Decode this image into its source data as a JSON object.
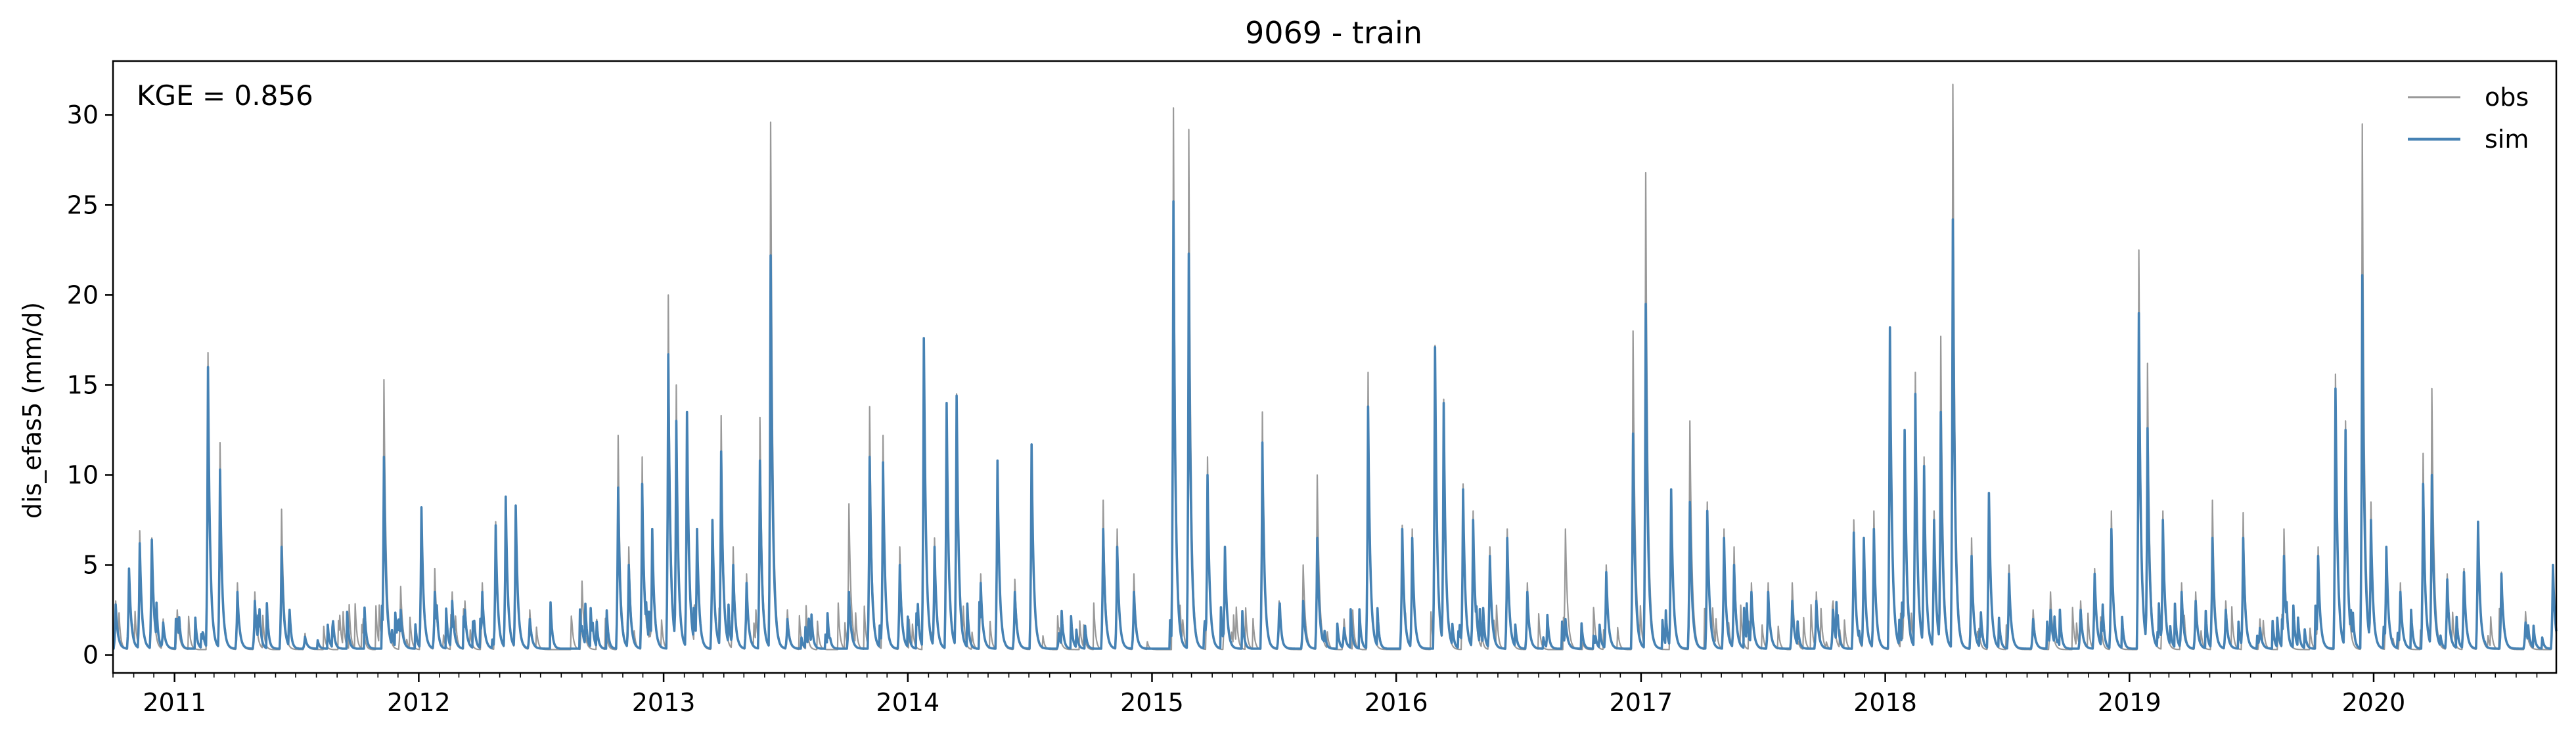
{
  "chart_data": {
    "type": "line",
    "title": "9069 - train",
    "xlabel": "",
    "ylabel": "dis_efas5 (mm/d)",
    "annotation": "KGE = 0.856",
    "x_range": [
      "2010-10-01",
      "2020-09-30"
    ],
    "ylim": [
      -1.0,
      33.0
    ],
    "y_ticks": [
      0,
      5,
      10,
      15,
      20,
      25,
      30
    ],
    "x_ticks": [
      {
        "date": "2011-01-01",
        "label": "2011"
      },
      {
        "date": "2012-01-01",
        "label": "2012"
      },
      {
        "date": "2013-01-01",
        "label": "2013"
      },
      {
        "date": "2014-01-01",
        "label": "2014"
      },
      {
        "date": "2015-01-01",
        "label": "2015"
      },
      {
        "date": "2016-01-01",
        "label": "2016"
      },
      {
        "date": "2017-01-01",
        "label": "2017"
      },
      {
        "date": "2018-01-01",
        "label": "2018"
      },
      {
        "date": "2019-01-01",
        "label": "2019"
      },
      {
        "date": "2020-01-01",
        "label": "2020"
      }
    ],
    "grid": false,
    "legend": {
      "position": "top-right"
    },
    "series": [
      {
        "name": "obs",
        "color": "#999999",
        "baseline": 0.3,
        "peaks": [
          [
            "2010-10-05",
            3.0
          ],
          [
            "2010-10-25",
            4.8
          ],
          [
            "2010-11-10",
            6.9
          ],
          [
            "2010-11-28",
            6.5
          ],
          [
            "2010-12-15",
            2.0
          ],
          [
            "2011-01-05",
            2.5
          ],
          [
            "2011-02-20",
            16.8
          ],
          [
            "2011-03-10",
            11.8
          ],
          [
            "2011-04-05",
            4.0
          ],
          [
            "2011-05-01",
            3.5
          ],
          [
            "2011-06-10",
            8.1
          ],
          [
            "2011-07-15",
            1.2
          ],
          [
            "2011-11-10",
            15.3
          ],
          [
            "2011-12-05",
            3.8
          ],
          [
            "2012-01-05",
            8.2
          ],
          [
            "2012-01-25",
            4.8
          ],
          [
            "2012-02-20",
            3.5
          ],
          [
            "2012-03-10",
            3.0
          ],
          [
            "2012-04-05",
            4.0
          ],
          [
            "2012-04-25",
            7.4
          ],
          [
            "2012-05-10",
            8.8
          ],
          [
            "2012-05-25",
            8.3
          ],
          [
            "2012-06-15",
            2.5
          ],
          [
            "2012-09-01",
            4.1
          ],
          [
            "2012-10-25",
            12.2
          ],
          [
            "2012-11-10",
            6.0
          ],
          [
            "2012-11-30",
            11.0
          ],
          [
            "2012-12-15",
            7.0
          ],
          [
            "2013-01-08",
            20.0
          ],
          [
            "2013-01-20",
            15.0
          ],
          [
            "2013-02-05",
            13.2
          ],
          [
            "2013-02-20",
            7.0
          ],
          [
            "2013-03-15",
            7.5
          ],
          [
            "2013-03-28",
            13.3
          ],
          [
            "2013-04-15",
            6.0
          ],
          [
            "2013-05-05",
            4.5
          ],
          [
            "2013-05-25",
            13.2
          ],
          [
            "2013-06-10",
            29.6
          ],
          [
            "2013-07-05",
            2.5
          ],
          [
            "2013-10-05",
            8.4
          ],
          [
            "2013-11-05",
            13.8
          ],
          [
            "2013-11-25",
            12.2
          ],
          [
            "2013-12-20",
            6.0
          ],
          [
            "2014-01-25",
            17.5
          ],
          [
            "2014-02-10",
            6.5
          ],
          [
            "2014-02-28",
            14.0
          ],
          [
            "2014-03-15",
            14.5
          ],
          [
            "2014-04-20",
            4.5
          ],
          [
            "2014-05-15",
            10.5
          ],
          [
            "2014-06-10",
            4.2
          ],
          [
            "2014-07-05",
            11.7
          ],
          [
            "2014-08-15",
            1.5
          ],
          [
            "2014-10-20",
            8.6
          ],
          [
            "2014-11-10",
            7.0
          ],
          [
            "2014-12-05",
            4.5
          ],
          [
            "2015-02-02",
            30.4
          ],
          [
            "2015-02-25",
            29.2
          ],
          [
            "2015-03-25",
            11.0
          ],
          [
            "2015-04-20",
            6.0
          ],
          [
            "2015-06-15",
            13.5
          ],
          [
            "2015-07-10",
            3.0
          ],
          [
            "2015-08-15",
            5.0
          ],
          [
            "2015-09-05",
            10.0
          ],
          [
            "2015-10-15",
            2.0
          ],
          [
            "2015-11-20",
            15.7
          ],
          [
            "2016-01-10",
            7.2
          ],
          [
            "2016-01-25",
            7.0
          ],
          [
            "2016-02-28",
            17.2
          ],
          [
            "2016-03-12",
            14.2
          ],
          [
            "2016-04-10",
            9.5
          ],
          [
            "2016-04-25",
            8.0
          ],
          [
            "2016-05-20",
            6.0
          ],
          [
            "2016-06-15",
            7.0
          ],
          [
            "2016-07-15",
            4.0
          ],
          [
            "2016-09-10",
            7.0
          ],
          [
            "2016-11-10",
            5.0
          ],
          [
            "2016-12-20",
            18.0
          ],
          [
            "2017-01-08",
            26.8
          ],
          [
            "2017-02-15",
            9.2
          ],
          [
            "2017-03-15",
            13.0
          ],
          [
            "2017-04-10",
            8.5
          ],
          [
            "2017-05-05",
            7.0
          ],
          [
            "2017-05-20",
            6.0
          ],
          [
            "2017-06-15",
            4.0
          ],
          [
            "2017-07-10",
            4.0
          ],
          [
            "2017-08-15",
            4.0
          ],
          [
            "2017-09-20",
            3.5
          ],
          [
            "2017-10-15",
            3.0
          ],
          [
            "2017-11-15",
            7.5
          ],
          [
            "2017-11-30",
            6.5
          ],
          [
            "2017-12-15",
            8.0
          ],
          [
            "2018-01-08",
            18.0
          ],
          [
            "2018-01-30",
            10.0
          ],
          [
            "2018-02-15",
            15.7
          ],
          [
            "2018-02-28",
            11.0
          ],
          [
            "2018-03-15",
            8.0
          ],
          [
            "2018-03-25",
            17.7
          ],
          [
            "2018-04-12",
            31.7
          ],
          [
            "2018-05-10",
            6.5
          ],
          [
            "2018-06-05",
            9.0
          ],
          [
            "2018-07-05",
            5.0
          ],
          [
            "2018-08-10",
            2.5
          ],
          [
            "2018-09-05",
            3.5
          ],
          [
            "2018-10-20",
            3.0
          ],
          [
            "2018-11-10",
            4.8
          ],
          [
            "2018-12-05",
            8.0
          ],
          [
            "2019-01-15",
            22.5
          ],
          [
            "2019-01-28",
            16.2
          ],
          [
            "2019-02-20",
            8.0
          ],
          [
            "2019-03-20",
            4.0
          ],
          [
            "2019-04-10",
            3.5
          ],
          [
            "2019-05-05",
            8.6
          ],
          [
            "2019-05-25",
            3.0
          ],
          [
            "2019-06-20",
            7.9
          ],
          [
            "2019-07-15",
            2.0
          ],
          [
            "2019-08-20",
            7.0
          ],
          [
            "2019-10-10",
            6.0
          ],
          [
            "2019-11-05",
            15.6
          ],
          [
            "2019-11-20",
            13.0
          ],
          [
            "2019-12-15",
            29.5
          ],
          [
            "2019-12-28",
            8.5
          ],
          [
            "2020-01-20",
            6.0
          ],
          [
            "2020-02-10",
            4.0
          ],
          [
            "2020-03-15",
            11.2
          ],
          [
            "2020-03-28",
            14.8
          ],
          [
            "2020-04-20",
            4.5
          ],
          [
            "2020-05-15",
            4.8
          ],
          [
            "2020-06-05",
            7.2
          ],
          [
            "2020-07-10",
            4.6
          ],
          [
            "2020-08-15",
            2.4
          ],
          [
            "2020-09-25",
            4.5
          ]
        ]
      },
      {
        "name": "sim",
        "color": "#4682b4",
        "baseline": 0.35,
        "peaks": [
          [
            "2010-10-05",
            2.8
          ],
          [
            "2010-10-25",
            4.8
          ],
          [
            "2010-11-10",
            6.2
          ],
          [
            "2010-11-28",
            6.4
          ],
          [
            "2010-12-15",
            1.8
          ],
          [
            "2011-01-05",
            2.0
          ],
          [
            "2011-02-20",
            16.0
          ],
          [
            "2011-03-10",
            10.3
          ],
          [
            "2011-04-05",
            3.5
          ],
          [
            "2011-05-01",
            3.0
          ],
          [
            "2011-06-10",
            6.0
          ],
          [
            "2011-07-15",
            1.0
          ],
          [
            "2011-11-10",
            11.0
          ],
          [
            "2011-12-05",
            2.5
          ],
          [
            "2012-01-05",
            8.2
          ],
          [
            "2012-01-25",
            3.5
          ],
          [
            "2012-02-20",
            3.0
          ],
          [
            "2012-03-10",
            2.5
          ],
          [
            "2012-04-05",
            3.5
          ],
          [
            "2012-04-25",
            7.2
          ],
          [
            "2012-05-10",
            8.8
          ],
          [
            "2012-05-25",
            8.3
          ],
          [
            "2012-06-15",
            2.0
          ],
          [
            "2012-09-01",
            1.6
          ],
          [
            "2012-10-25",
            9.3
          ],
          [
            "2012-11-10",
            5.0
          ],
          [
            "2012-11-30",
            9.5
          ],
          [
            "2012-12-15",
            7.0
          ],
          [
            "2013-01-08",
            16.7
          ],
          [
            "2013-01-20",
            13.0
          ],
          [
            "2013-02-05",
            13.5
          ],
          [
            "2013-02-20",
            7.0
          ],
          [
            "2013-03-15",
            7.5
          ],
          [
            "2013-03-28",
            11.3
          ],
          [
            "2013-04-15",
            5.0
          ],
          [
            "2013-05-05",
            4.0
          ],
          [
            "2013-05-25",
            10.8
          ],
          [
            "2013-06-10",
            22.2
          ],
          [
            "2013-07-05",
            2.0
          ],
          [
            "2013-10-05",
            3.5
          ],
          [
            "2013-11-05",
            11.0
          ],
          [
            "2013-11-25",
            10.7
          ],
          [
            "2013-12-20",
            5.0
          ],
          [
            "2014-01-25",
            17.6
          ],
          [
            "2014-02-10",
            6.0
          ],
          [
            "2014-02-28",
            14.0
          ],
          [
            "2014-03-15",
            14.4
          ],
          [
            "2014-04-20",
            4.0
          ],
          [
            "2014-05-15",
            10.8
          ],
          [
            "2014-06-10",
            3.5
          ],
          [
            "2014-07-05",
            11.7
          ],
          [
            "2014-08-15",
            1.2
          ],
          [
            "2014-10-20",
            7.0
          ],
          [
            "2014-11-10",
            6.0
          ],
          [
            "2014-12-05",
            3.5
          ],
          [
            "2015-02-02",
            25.2
          ],
          [
            "2015-02-25",
            22.3
          ],
          [
            "2015-03-25",
            10.0
          ],
          [
            "2015-04-20",
            6.0
          ],
          [
            "2015-06-15",
            11.8
          ],
          [
            "2015-07-10",
            2.5
          ],
          [
            "2015-08-15",
            3.0
          ],
          [
            "2015-09-05",
            6.5
          ],
          [
            "2015-10-15",
            1.5
          ],
          [
            "2015-11-20",
            13.8
          ],
          [
            "2016-01-10",
            7.0
          ],
          [
            "2016-01-25",
            6.5
          ],
          [
            "2016-02-28",
            17.1
          ],
          [
            "2016-03-12",
            14.0
          ],
          [
            "2016-04-10",
            9.2
          ],
          [
            "2016-04-25",
            7.5
          ],
          [
            "2016-05-20",
            5.5
          ],
          [
            "2016-06-15",
            6.5
          ],
          [
            "2016-07-15",
            3.5
          ],
          [
            "2016-09-10",
            2.0
          ],
          [
            "2016-11-10",
            4.6
          ],
          [
            "2016-12-20",
            12.3
          ],
          [
            "2017-01-08",
            19.5
          ],
          [
            "2017-02-15",
            9.2
          ],
          [
            "2017-03-15",
            8.5
          ],
          [
            "2017-04-10",
            8.0
          ],
          [
            "2017-05-05",
            6.5
          ],
          [
            "2017-05-20",
            5.0
          ],
          [
            "2017-06-15",
            3.5
          ],
          [
            "2017-07-10",
            3.5
          ],
          [
            "2017-08-15",
            3.0
          ],
          [
            "2017-09-20",
            3.0
          ],
          [
            "2017-10-15",
            2.5
          ],
          [
            "2017-11-15",
            6.8
          ],
          [
            "2017-11-30",
            6.5
          ],
          [
            "2017-12-15",
            7.0
          ],
          [
            "2018-01-08",
            18.2
          ],
          [
            "2018-01-30",
            12.5
          ],
          [
            "2018-02-15",
            14.5
          ],
          [
            "2018-02-28",
            10.5
          ],
          [
            "2018-03-15",
            7.5
          ],
          [
            "2018-03-25",
            13.5
          ],
          [
            "2018-04-12",
            24.2
          ],
          [
            "2018-05-10",
            5.5
          ],
          [
            "2018-06-05",
            9.0
          ],
          [
            "2018-07-05",
            4.5
          ],
          [
            "2018-08-10",
            2.0
          ],
          [
            "2018-09-05",
            2.5
          ],
          [
            "2018-10-20",
            2.5
          ],
          [
            "2018-11-10",
            4.5
          ],
          [
            "2018-12-05",
            7.0
          ],
          [
            "2019-01-15",
            19.0
          ],
          [
            "2019-01-28",
            12.6
          ],
          [
            "2019-02-20",
            7.5
          ],
          [
            "2019-03-20",
            3.5
          ],
          [
            "2019-04-10",
            3.0
          ],
          [
            "2019-05-05",
            6.5
          ],
          [
            "2019-05-25",
            2.5
          ],
          [
            "2019-06-20",
            6.5
          ],
          [
            "2019-07-15",
            1.5
          ],
          [
            "2019-08-20",
            5.5
          ],
          [
            "2019-10-10",
            5.5
          ],
          [
            "2019-11-05",
            14.8
          ],
          [
            "2019-11-20",
            12.5
          ],
          [
            "2019-12-15",
            21.1
          ],
          [
            "2019-12-28",
            7.5
          ],
          [
            "2020-01-20",
            6.0
          ],
          [
            "2020-02-10",
            3.5
          ],
          [
            "2020-03-15",
            9.5
          ],
          [
            "2020-03-28",
            10.0
          ],
          [
            "2020-04-20",
            4.2
          ],
          [
            "2020-05-15",
            4.6
          ],
          [
            "2020-06-05",
            7.4
          ],
          [
            "2020-07-10",
            4.5
          ],
          [
            "2020-08-15",
            1.8
          ],
          [
            "2020-09-25",
            5.0
          ]
        ]
      }
    ]
  }
}
